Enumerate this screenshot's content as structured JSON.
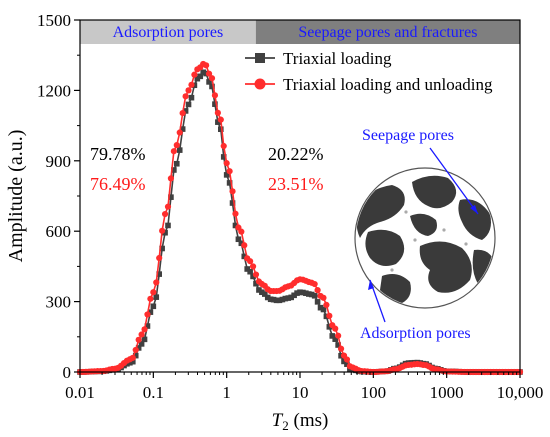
{
  "chart_data": {
    "type": "line",
    "xlabel_symbol": "T",
    "xlabel_subscript": "2",
    "xlabel_unit": " (ms)",
    "ylabel": "Amplitude (a.u.)",
    "xscale": "log",
    "xlim": [
      0.01,
      10000
    ],
    "ylim": [
      0,
      1500
    ],
    "x_ticks": [
      0.01,
      0.1,
      1,
      10,
      100,
      1000,
      10000
    ],
    "x_tick_labels": [
      "0.01",
      "0.1",
      "1",
      "10",
      "100",
      "1000",
      "10,000"
    ],
    "y_ticks": [
      0,
      300,
      600,
      900,
      1200,
      1500
    ],
    "y_tick_labels": [
      "0",
      "300",
      "600",
      "900",
      "1200",
      "1500"
    ],
    "regions": [
      {
        "label": "Adsorption pores",
        "x_range": [
          0.01,
          2.5
        ],
        "color": "#c8c8c8",
        "text_color": "#1a1aff"
      },
      {
        "label": "Seepage pores and fractures",
        "x_range": [
          2.5,
          10000
        ],
        "color": "#7f7f7f",
        "text_color": "#1a1aff"
      }
    ],
    "legend": {
      "placement": "top-right"
    },
    "series": [
      {
        "name": "Triaxial loading",
        "color": "#404040",
        "marker": "square",
        "x": [
          0.01,
          0.02,
          0.03,
          0.05,
          0.07,
          0.1,
          0.15,
          0.2,
          0.3,
          0.4,
          0.5,
          0.6,
          0.8,
          1,
          1.5,
          2,
          3,
          4,
          5,
          7,
          10,
          15,
          20,
          30,
          40,
          50,
          70,
          100,
          150,
          200,
          300,
          400,
          500,
          700,
          1000,
          2000,
          5000,
          10000
        ],
        "y": [
          0,
          3,
          10,
          40,
          120,
          280,
          600,
          880,
          1140,
          1250,
          1280,
          1230,
          1050,
          840,
          560,
          430,
          340,
          310,
          305,
          315,
          340,
          330,
          270,
          140,
          45,
          10,
          2,
          0,
          3,
          15,
          38,
          40,
          35,
          15,
          3,
          0,
          0,
          0
        ]
      },
      {
        "name": "Triaxial loading and unloading",
        "color": "#ff2d2d",
        "marker": "circle",
        "x": [
          0.01,
          0.02,
          0.03,
          0.05,
          0.07,
          0.1,
          0.15,
          0.2,
          0.3,
          0.4,
          0.5,
          0.6,
          0.8,
          1,
          1.5,
          2,
          3,
          4,
          5,
          7,
          10,
          15,
          20,
          30,
          40,
          50,
          70,
          100,
          150,
          200,
          300,
          400,
          500,
          700,
          1000,
          2000,
          5000,
          10000
        ],
        "y": [
          0,
          4,
          14,
          55,
          160,
          340,
          680,
          960,
          1200,
          1290,
          1315,
          1265,
          1090,
          890,
          610,
          475,
          375,
          345,
          345,
          365,
          395,
          380,
          320,
          185,
          70,
          20,
          4,
          0,
          3,
          12,
          30,
          34,
          30,
          12,
          2,
          0,
          0,
          0
        ]
      }
    ],
    "annotations": {
      "adsorption_black": "79.78%",
      "adsorption_red": "76.49%",
      "seepage_black": "20.22%",
      "seepage_red": "23.51%",
      "inset_label_top": "Seepage pores",
      "inset_label_bottom": "Adsorption pores"
    }
  }
}
